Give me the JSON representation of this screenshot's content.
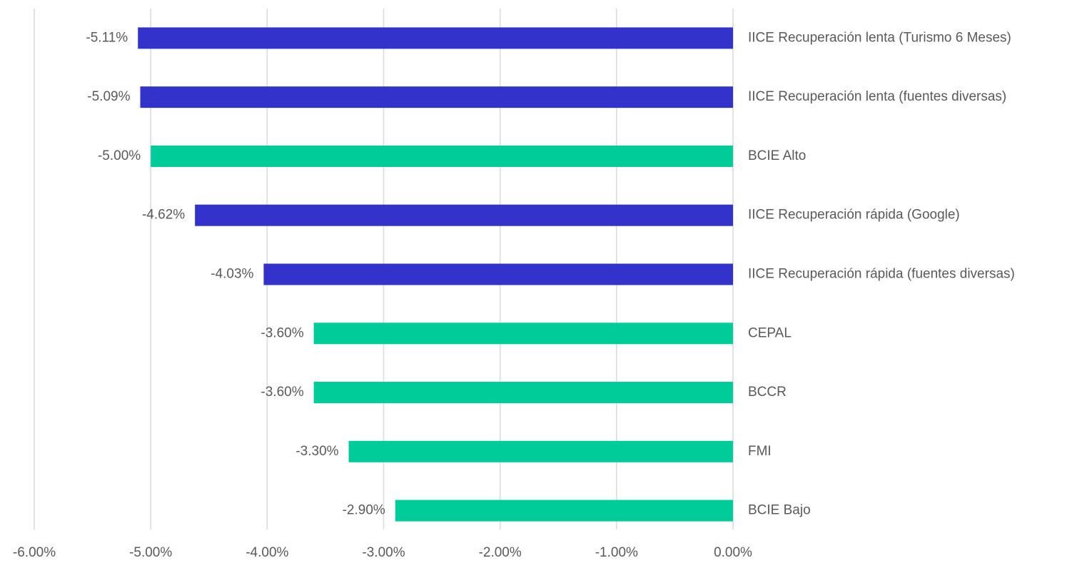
{
  "chart_data": {
    "type": "bar",
    "orientation": "horizontal",
    "categories": [
      "IICE Recuperación lenta (Turismo 6 Meses)",
      "IICE Recuperación lenta (fuentes diversas)",
      "BCIE Alto",
      "IICE Recuperación rápida (Google)",
      "IICE Recuperación rápida (fuentes diversas)",
      "CEPAL",
      "BCCR",
      "FMI",
      "BCIE Bajo"
    ],
    "values": [
      -5.11,
      -5.09,
      -5.0,
      -4.62,
      -4.03,
      -3.6,
      -3.6,
      -3.3,
      -2.9
    ],
    "value_labels": [
      "-5.11%",
      "-5.09%",
      "-5.00%",
      "-4.62%",
      "-4.03%",
      "-3.60%",
      "-3.60%",
      "-3.30%",
      "-2.90%"
    ],
    "colors": [
      "#3333cc",
      "#3333cc",
      "#00cc99",
      "#3333cc",
      "#3333cc",
      "#00cc99",
      "#00cc99",
      "#00cc99",
      "#00cc99"
    ],
    "xlim": [
      -6,
      0
    ],
    "xticks": [
      {
        "value": -6,
        "label": "-6.00%"
      },
      {
        "value": -5,
        "label": "-5.00%"
      },
      {
        "value": -4,
        "label": "-4.00%"
      },
      {
        "value": -3,
        "label": "-3.00%"
      },
      {
        "value": -2,
        "label": "-2.00%"
      },
      {
        "value": -1,
        "label": "-1.00%"
      },
      {
        "value": 0,
        "label": "0.00%"
      }
    ],
    "grid": true
  }
}
